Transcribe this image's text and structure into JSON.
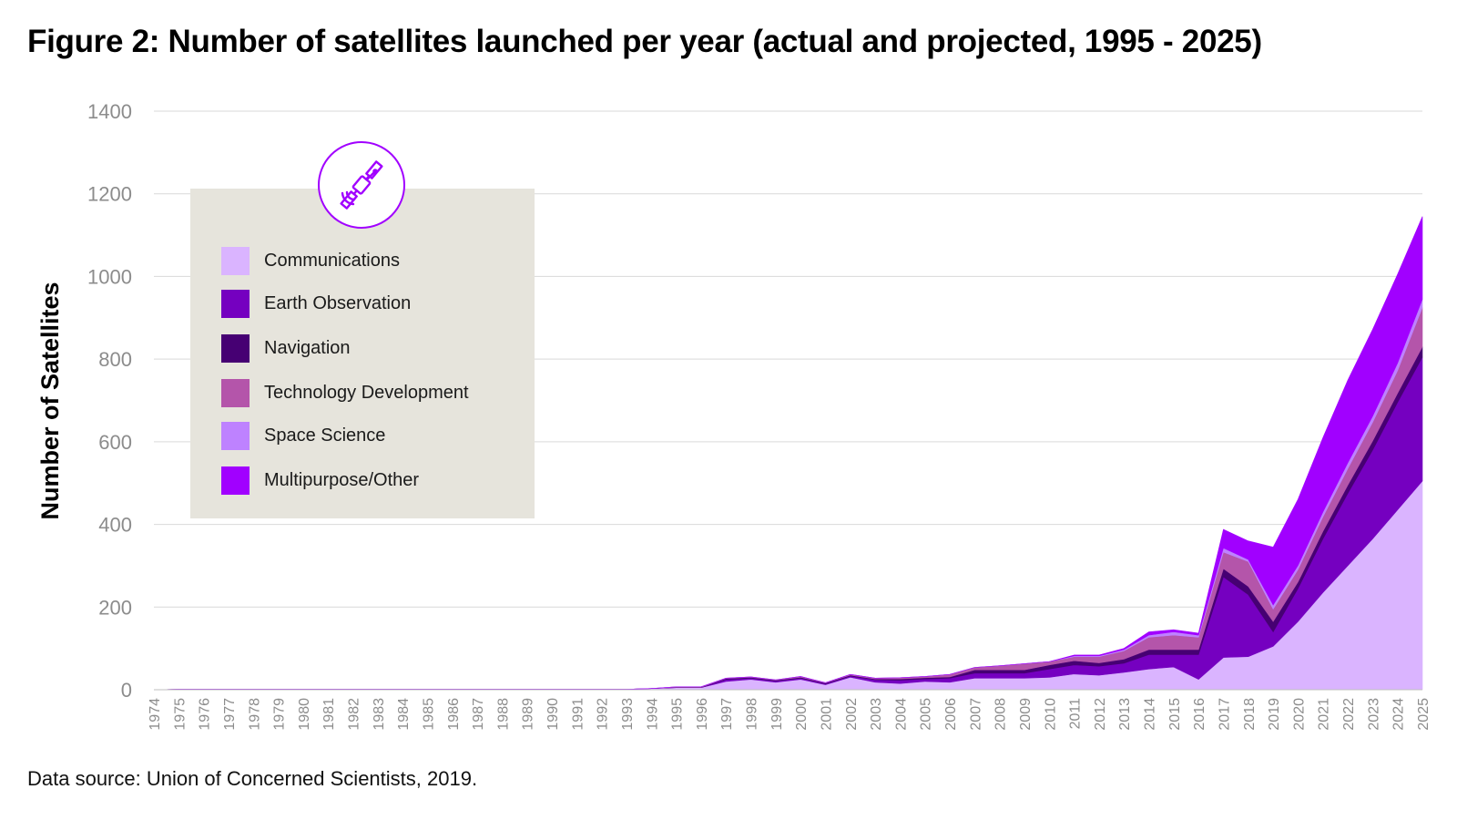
{
  "title": "Figure 2: Number of satellites launched per year (actual and projected, 1995 - 2025)",
  "source": "Data source: Union of Concerned Scientists, 2019.",
  "legend": {
    "icon": "satellite-icon",
    "items": [
      {
        "label": "Communications",
        "color": "#dab4ff"
      },
      {
        "label": "Earth Observation",
        "color": "#7500c0"
      },
      {
        "label": "Navigation",
        "color": "#460073"
      },
      {
        "label": "Technology Development",
        "color": "#b455aa"
      },
      {
        "label": "Space Science",
        "color": "#be82ff"
      },
      {
        "label": "Multipurpose/Other",
        "color": "#a100ff"
      }
    ]
  },
  "chart_data": {
    "type": "area",
    "stacked": true,
    "title": "Figure 2: Number of satellites launched per year (actual and projected, 1995 - 2025)",
    "ylabel": "Number of Satellites",
    "xlabel": "",
    "ylim": [
      0,
      1400
    ],
    "yticks": [
      0,
      200,
      400,
      600,
      800,
      1000,
      1200,
      1400
    ],
    "grid": true,
    "legend_position": "upper-left",
    "x": [
      "1974",
      "1975",
      "1976",
      "1977",
      "1978",
      "1979",
      "1980",
      "1981",
      "1982",
      "1983",
      "1984",
      "1985",
      "1986",
      "1987",
      "1988",
      "1989",
      "1990",
      "1991",
      "1992",
      "1993",
      "1994",
      "1995",
      "1996",
      "1997",
      "1998",
      "1999",
      "2000",
      "2001",
      "2002",
      "2003",
      "2004",
      "2005",
      "2006",
      "2007",
      "2008",
      "2009",
      "2010",
      "2011",
      "2012",
      "2013",
      "2014",
      "2015",
      "2016",
      "2017",
      "2018",
      "2019",
      "2020",
      "2021",
      "2022",
      "2023",
      "2024",
      "2025"
    ],
    "series": [
      {
        "name": "Communications",
        "color": "#dab4ff",
        "values": [
          0,
          1,
          1,
          1,
          1,
          1,
          1,
          1,
          1,
          1,
          1,
          1,
          1,
          1,
          1,
          1,
          1,
          1,
          1,
          1,
          3,
          5,
          5,
          20,
          25,
          18,
          25,
          12,
          30,
          18,
          15,
          20,
          18,
          28,
          28,
          28,
          30,
          38,
          35,
          42,
          50,
          55,
          25,
          78,
          80,
          105,
          165,
          235,
          300,
          365,
          435,
          505
        ]
      },
      {
        "name": "Earth Observation",
        "color": "#7500c0",
        "values": [
          0,
          0,
          0,
          0,
          0,
          0,
          0,
          0,
          0,
          0,
          0,
          0,
          0,
          0,
          0,
          0,
          0,
          0,
          0,
          0,
          0,
          0,
          0,
          5,
          3,
          3,
          3,
          2,
          3,
          6,
          8,
          6,
          10,
          12,
          12,
          12,
          20,
          22,
          22,
          22,
          35,
          30,
          60,
          195,
          150,
          35,
          80,
          130,
          175,
          215,
          260,
          300
        ]
      },
      {
        "name": "Navigation",
        "color": "#460073",
        "values": [
          0,
          0,
          0,
          0,
          0,
          0,
          0,
          0,
          0,
          0,
          0,
          0,
          0,
          0,
          0,
          0,
          0,
          0,
          0,
          0,
          0,
          1,
          1,
          2,
          2,
          2,
          2,
          2,
          2,
          2,
          3,
          3,
          3,
          8,
          8,
          8,
          10,
          10,
          8,
          10,
          12,
          12,
          12,
          20,
          20,
          25,
          16,
          18,
          20,
          22,
          22,
          25
        ]
      },
      {
        "name": "Technology Development",
        "color": "#b455aa",
        "values": [
          0,
          0,
          0,
          0,
          0,
          0,
          0,
          0,
          0,
          0,
          0,
          0,
          0,
          0,
          0,
          0,
          0,
          0,
          0,
          0,
          0,
          1,
          1,
          1,
          1,
          1,
          2,
          1,
          2,
          2,
          3,
          3,
          6,
          6,
          10,
          15,
          8,
          10,
          15,
          20,
          30,
          35,
          30,
          40,
          60,
          30,
          30,
          35,
          40,
          45,
          55,
          95
        ]
      },
      {
        "name": "Space Science",
        "color": "#be82ff",
        "values": [
          0,
          0,
          0,
          0,
          0,
          0,
          0,
          0,
          0,
          0,
          0,
          0,
          0,
          0,
          0,
          0,
          0,
          0,
          0,
          0,
          0,
          0,
          0,
          0,
          0,
          0,
          0,
          0,
          0,
          0,
          0,
          0,
          0,
          0,
          0,
          0,
          0,
          2,
          2,
          3,
          5,
          8,
          5,
          10,
          5,
          10,
          10,
          12,
          14,
          15,
          18,
          20
        ]
      },
      {
        "name": "Multipurpose/Other",
        "color": "#a100ff",
        "values": [
          0,
          0,
          0,
          0,
          0,
          0,
          0,
          0,
          0,
          0,
          0,
          0,
          0,
          0,
          0,
          0,
          0,
          0,
          0,
          0,
          0,
          0,
          0,
          0,
          0,
          0,
          0,
          0,
          0,
          0,
          0,
          0,
          0,
          0,
          0,
          0,
          0,
          2,
          2,
          3,
          8,
          5,
          5,
          45,
          45,
          140,
          160,
          180,
          200,
          210,
          215,
          200
        ]
      }
    ]
  }
}
